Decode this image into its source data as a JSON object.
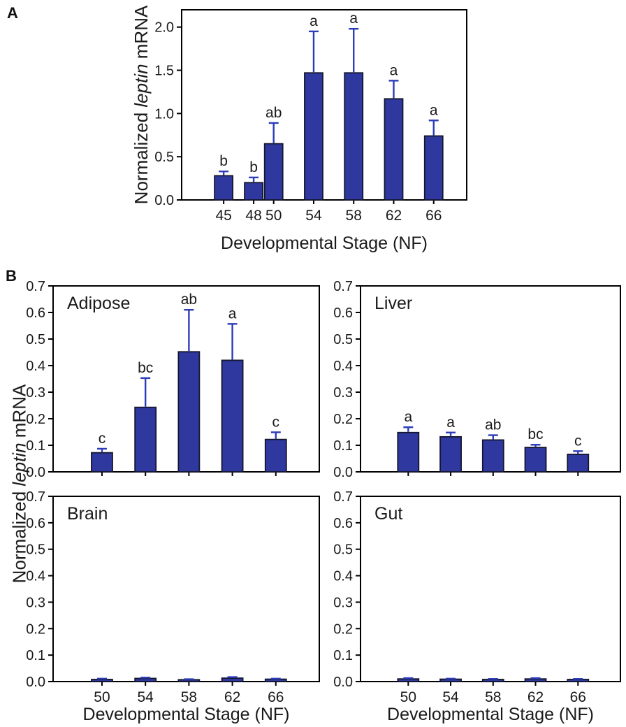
{
  "figure": {
    "panel_a_label": "A",
    "panel_b_label": "B",
    "b_ylabel": {
      "pre": "Normalized ",
      "italic": "leptin",
      "post": " mRNA"
    }
  },
  "style": {
    "background": "#FFFFFF",
    "bar_fill": "#2F389E",
    "bar_stroke": "#14162E",
    "error_color": "#2C3CB8",
    "axis_color": "#000000",
    "text_color": "#1A1A1A"
  },
  "chart_data": [
    {
      "id": "panel-a",
      "type": "bar",
      "title": "",
      "categories": [
        45,
        48,
        50,
        54,
        58,
        62,
        66
      ],
      "values": [
        0.28,
        0.2,
        0.65,
        1.47,
        1.47,
        1.17,
        0.74
      ],
      "errors_plus": [
        0.05,
        0.06,
        0.24,
        0.48,
        0.51,
        0.21,
        0.18
      ],
      "sig_letters": [
        "b",
        "b",
        "ab",
        "a",
        "a",
        "a",
        "a"
      ],
      "xlabel": "Developmental Stage (NF)",
      "ylabel_parts": {
        "pre": "Normalized ",
        "italic": "leptin",
        "post": " mRNA"
      },
      "xlim": [
        40.8,
        69.3
      ],
      "ylim": [
        0,
        2.2
      ],
      "yticks": [
        0.0,
        0.5,
        1.0,
        1.5,
        2.0
      ],
      "grid": false,
      "legend": null,
      "show_x_labels": true,
      "show_xlabel": true
    },
    {
      "id": "adipose",
      "type": "bar",
      "title": "Adipose",
      "categories": [
        50,
        54,
        58,
        62,
        66
      ],
      "values": [
        0.072,
        0.243,
        0.452,
        0.42,
        0.122
      ],
      "errors_plus": [
        0.015,
        0.11,
        0.158,
        0.137,
        0.027
      ],
      "sig_letters": [
        "c",
        "bc",
        "ab",
        "a",
        "c"
      ],
      "xlabel": "",
      "xlim": [
        45.5,
        70
      ],
      "ylim": [
        0,
        0.7
      ],
      "yticks": [
        0.0,
        0.1,
        0.2,
        0.3,
        0.4,
        0.5,
        0.6,
        0.7
      ],
      "grid": false,
      "legend": null,
      "show_x_labels": false,
      "show_xlabel": false
    },
    {
      "id": "liver",
      "type": "bar",
      "title": "Liver",
      "categories": [
        50,
        54,
        58,
        62,
        66
      ],
      "values": [
        0.148,
        0.132,
        0.12,
        0.092,
        0.066
      ],
      "errors_plus": [
        0.02,
        0.016,
        0.018,
        0.01,
        0.012
      ],
      "sig_letters": [
        "a",
        "a",
        "ab",
        "bc",
        "c"
      ],
      "xlabel": "",
      "xlim": [
        45.5,
        70
      ],
      "ylim": [
        0,
        0.7
      ],
      "yticks": [
        0.0,
        0.1,
        0.2,
        0.3,
        0.4,
        0.5,
        0.6,
        0.7
      ],
      "grid": false,
      "legend": null,
      "show_x_labels": false,
      "show_xlabel": false
    },
    {
      "id": "brain",
      "type": "bar",
      "title": "Brain",
      "categories": [
        50,
        54,
        58,
        62,
        66
      ],
      "values": [
        0.008,
        0.012,
        0.007,
        0.013,
        0.009
      ],
      "errors_plus": [
        0.003,
        0.003,
        0.002,
        0.004,
        0.002
      ],
      "sig_letters": [
        "",
        "",
        "",
        "",
        ""
      ],
      "xlabel": "Developmental Stage (NF)",
      "xlim": [
        45.5,
        70
      ],
      "ylim": [
        0,
        0.7
      ],
      "yticks": [
        0.0,
        0.1,
        0.2,
        0.3,
        0.4,
        0.5,
        0.6,
        0.7
      ],
      "grid": false,
      "legend": null,
      "show_x_labels": true,
      "show_xlabel": true
    },
    {
      "id": "gut",
      "type": "bar",
      "title": "Gut",
      "categories": [
        50,
        54,
        58,
        62,
        66
      ],
      "values": [
        0.01,
        0.009,
        0.008,
        0.01,
        0.008
      ],
      "errors_plus": [
        0.003,
        0.002,
        0.002,
        0.003,
        0.002
      ],
      "sig_letters": [
        "",
        "",
        "",
        "",
        ""
      ],
      "xlabel": "Developmental Stage (NF)",
      "xlim": [
        45.5,
        70
      ],
      "ylim": [
        0,
        0.7
      ],
      "yticks": [
        0.0,
        0.1,
        0.2,
        0.3,
        0.4,
        0.5,
        0.6,
        0.7
      ],
      "grid": false,
      "legend": null,
      "show_x_labels": true,
      "show_xlabel": true
    }
  ]
}
